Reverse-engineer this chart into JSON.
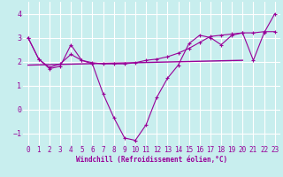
{
  "xlabel": "Windchill (Refroidissement éolien,°C)",
  "background_color": "#c8eeee",
  "grid_color": "#ffffff",
  "line_color": "#990099",
  "xlim": [
    -0.5,
    23.5
  ],
  "ylim": [
    -1.5,
    4.5
  ],
  "yticks": [
    -1,
    0,
    1,
    2,
    3,
    4
  ],
  "xticks": [
    0,
    1,
    2,
    3,
    4,
    5,
    6,
    7,
    8,
    9,
    10,
    11,
    12,
    13,
    14,
    15,
    16,
    17,
    18,
    19,
    20,
    21,
    22,
    23
  ],
  "line1_x": [
    0,
    1,
    2,
    3,
    4,
    5,
    6,
    7,
    8,
    9,
    10,
    11,
    12,
    13,
    14,
    15,
    16,
    17,
    18,
    19,
    20,
    21,
    22,
    23
  ],
  "line1_y": [
    3.0,
    2.1,
    1.7,
    1.8,
    2.7,
    2.05,
    1.9,
    0.65,
    -0.35,
    -1.2,
    -1.3,
    -0.65,
    0.5,
    1.3,
    1.85,
    2.75,
    3.1,
    3.0,
    2.7,
    3.1,
    3.2,
    2.05,
    3.2,
    4.0
  ],
  "line2_x": [
    0,
    1,
    2,
    3,
    4,
    5,
    6,
    7,
    8,
    9,
    10,
    11,
    12,
    13,
    14,
    15,
    16,
    17,
    18,
    19,
    20,
    21,
    22,
    23
  ],
  "line2_y": [
    3.0,
    2.1,
    1.75,
    1.9,
    2.3,
    2.05,
    1.95,
    1.9,
    1.9,
    1.9,
    1.95,
    2.05,
    2.1,
    2.2,
    2.35,
    2.55,
    2.8,
    3.05,
    3.1,
    3.15,
    3.2,
    3.2,
    3.25,
    3.25
  ],
  "line3_x": [
    0,
    20
  ],
  "line3_y": [
    1.85,
    2.05
  ]
}
